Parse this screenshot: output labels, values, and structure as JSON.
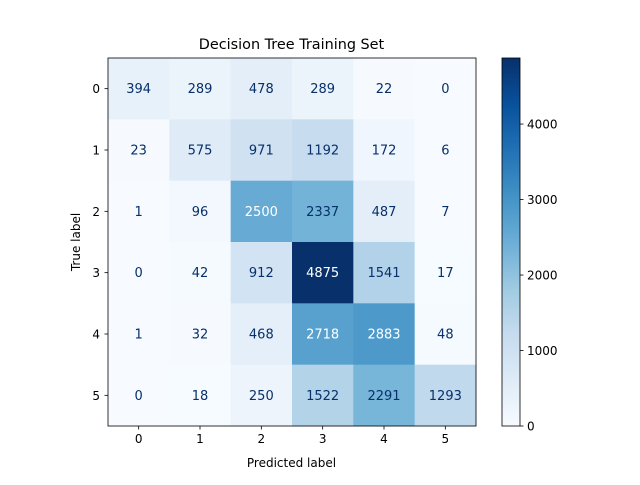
{
  "chart_data": {
    "type": "heatmap",
    "title": "Decision Tree Training Set",
    "xlabel": "Predicted label",
    "ylabel": "True label",
    "x_ticks": [
      "0",
      "1",
      "2",
      "3",
      "4",
      "5"
    ],
    "y_ticks": [
      "0",
      "1",
      "2",
      "3",
      "4",
      "5"
    ],
    "matrix": [
      [
        394,
        289,
        478,
        289,
        22,
        0
      ],
      [
        23,
        575,
        971,
        1192,
        172,
        6
      ],
      [
        1,
        96,
        2500,
        2337,
        487,
        7
      ],
      [
        0,
        42,
        912,
        4875,
        1541,
        17
      ],
      [
        1,
        32,
        468,
        2718,
        2883,
        48
      ],
      [
        0,
        18,
        250,
        1522,
        2291,
        1293
      ]
    ],
    "colormap": "Blues",
    "value_range": [
      0,
      4875
    ],
    "colorbar_ticks": [
      "0",
      "1000",
      "2000",
      "3000",
      "4000"
    ],
    "colorbar_tick_values": [
      0,
      1000,
      2000,
      3000,
      4000
    ],
    "text_color_light": "#ffffff",
    "text_color_dark": "#08306b"
  }
}
